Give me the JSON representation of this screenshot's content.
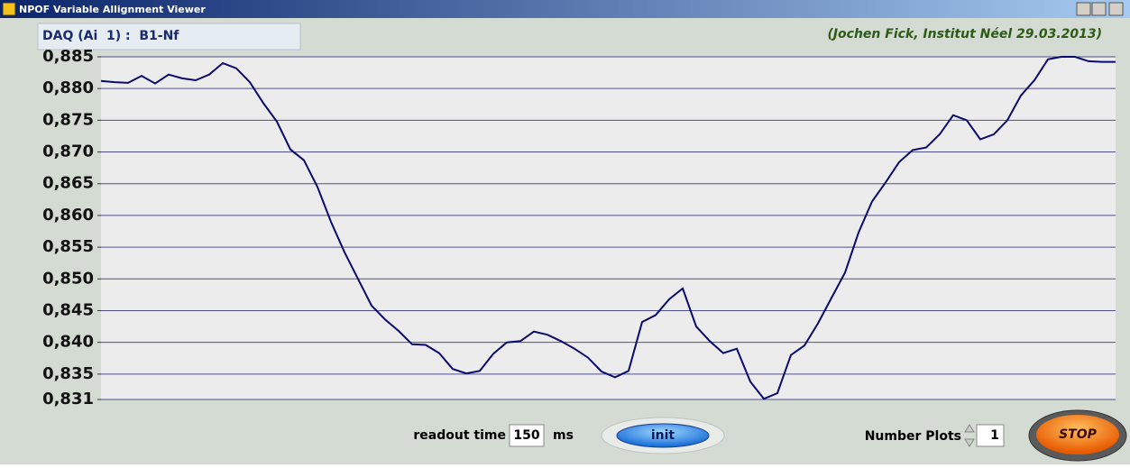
{
  "window": {
    "title": "NPOF Variable Allignment Viewer"
  },
  "channel_label": "DAQ (Ai  1) :  B1-Nf",
  "credit": "(Jochen Fick, Institut Néel 29.03.2013)",
  "chart_data": {
    "type": "line",
    "series": [
      {
        "color": "#0a0a6e",
        "values": [
          0.8812,
          0.881,
          0.8809,
          0.882,
          0.8808,
          0.8822,
          0.8816,
          0.8813,
          0.8822,
          0.884,
          0.8832,
          0.881,
          0.8777,
          0.8748,
          0.8704,
          0.8687,
          0.8645,
          0.859,
          0.8542,
          0.85,
          0.8458,
          0.8436,
          0.8418,
          0.8397,
          0.8396,
          0.8383,
          0.8358,
          0.8351,
          0.8355,
          0.8382,
          0.84,
          0.8402,
          0.8417,
          0.8412,
          0.8402,
          0.839,
          0.8376,
          0.8354,
          0.8345,
          0.8355,
          0.8432,
          0.8443,
          0.8468,
          0.8485,
          0.8425,
          0.8402,
          0.8383,
          0.839,
          0.8338,
          0.8311,
          0.832,
          0.838,
          0.8395,
          0.843,
          0.847,
          0.851,
          0.8573,
          0.8622,
          0.8652,
          0.8684,
          0.8703,
          0.8707,
          0.8728,
          0.8758,
          0.875,
          0.872,
          0.8728,
          0.875,
          0.8789,
          0.8813,
          0.8846,
          0.885,
          0.885,
          0.8843,
          0.8842,
          0.8842
        ]
      }
    ],
    "ylim": [
      0.831,
      0.885
    ],
    "yticks": [
      {
        "value": 0.831,
        "label": "0,831"
      },
      {
        "value": 0.835,
        "label": "0,835"
      },
      {
        "value": 0.84,
        "label": "0,840"
      },
      {
        "value": 0.845,
        "label": "0,845"
      },
      {
        "value": 0.85,
        "label": "0,850"
      },
      {
        "value": 0.855,
        "label": "0,855"
      },
      {
        "value": 0.86,
        "label": "0,860"
      },
      {
        "value": 0.865,
        "label": "0,865"
      },
      {
        "value": 0.87,
        "label": "0,870"
      },
      {
        "value": 0.875,
        "label": "0,875"
      },
      {
        "value": 0.88,
        "label": "0,880"
      },
      {
        "value": 0.885,
        "label": "0,885"
      }
    ],
    "grid": true
  },
  "controls": {
    "readout_label": "readout time",
    "readout_value": "150",
    "readout_unit": "ms",
    "init": "init",
    "plots_label": "Number Plots",
    "plots_value": "1",
    "stop": "STOP"
  }
}
